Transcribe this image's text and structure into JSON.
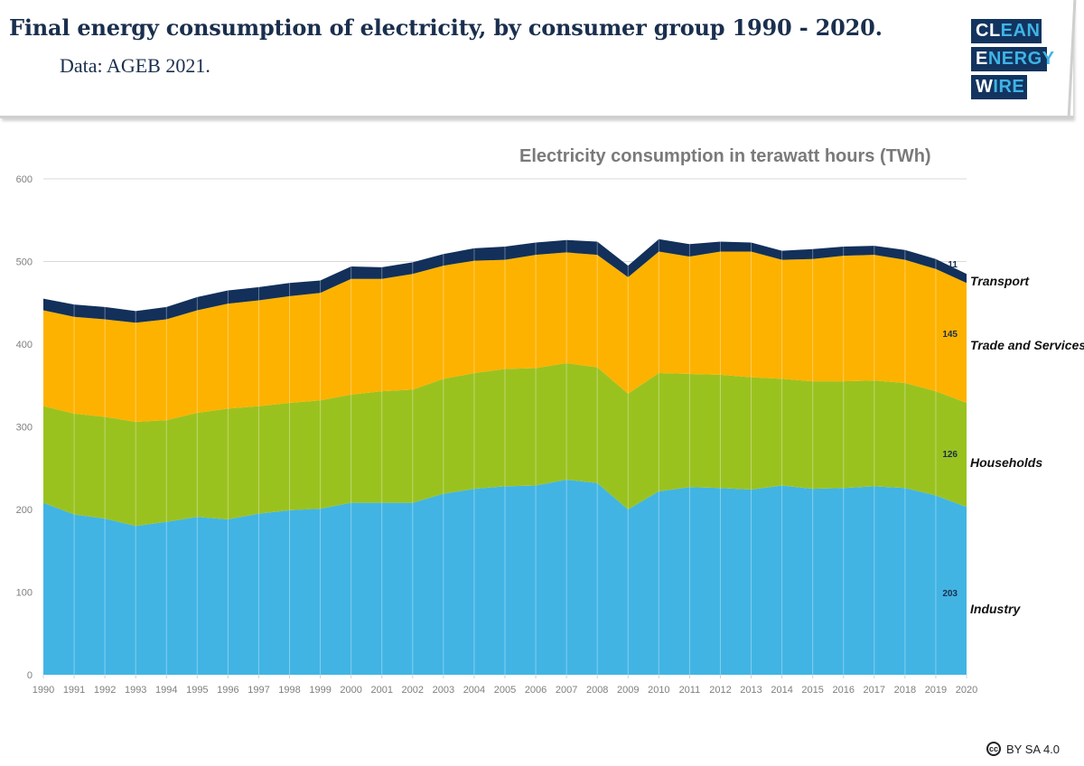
{
  "header": {
    "title": "Final energy consumption of electricity, by consumer group 1990 - 2020.",
    "subtitle": "Data: AGEB 2021."
  },
  "logo": {
    "line1": {
      "white": "CL",
      "blue": "EAN"
    },
    "line2": {
      "white": "E",
      "blue": "NERGY"
    },
    "line3": {
      "white": "W",
      "blue": "IRE"
    }
  },
  "license": {
    "icon": "cc-icon",
    "icon_text": "cc",
    "text": "BY SA 4.0"
  },
  "chart_data": {
    "type": "area",
    "stacked": true,
    "title": "Electricity consumption in terawatt hours (TWh)",
    "xlabel": "",
    "ylabel": "",
    "ylim": [
      0,
      600
    ],
    "yticks": [
      0,
      100,
      200,
      300,
      400,
      500,
      600
    ],
    "grid": true,
    "categories": [
      "1990",
      "1991",
      "1992",
      "1993",
      "1994",
      "1995",
      "1996",
      "1997",
      "1998",
      "1999",
      "2000",
      "2001",
      "2002",
      "2003",
      "2004",
      "2005",
      "2006",
      "2007",
      "2008",
      "2009",
      "2010",
      "2011",
      "2012",
      "2013",
      "2014",
      "2015",
      "2016",
      "2017",
      "2018",
      "2019",
      "2020"
    ],
    "series": [
      {
        "name": "Industry",
        "color": "#41b4e4",
        "values": [
          208,
          194,
          189,
          180,
          185,
          191,
          188,
          195,
          199,
          201,
          208,
          208,
          208,
          219,
          225,
          228,
          229,
          236,
          232,
          200,
          222,
          227,
          226,
          224,
          229,
          225,
          226,
          228,
          226,
          217,
          203
        ],
        "end_label": "203"
      },
      {
        "name": "Households",
        "color": "#9ac21f",
        "values": [
          117,
          122,
          123,
          126,
          123,
          126,
          134,
          130,
          130,
          131,
          131,
          135,
          137,
          139,
          140,
          142,
          142,
          141,
          140,
          140,
          143,
          137,
          137,
          136,
          129,
          130,
          129,
          128,
          127,
          126,
          126
        ],
        "end_label": "126"
      },
      {
        "name": "Trade and Services",
        "color": "#fdb200",
        "values": [
          116,
          117,
          118,
          120,
          122,
          124,
          127,
          128,
          129,
          130,
          140,
          136,
          140,
          137,
          136,
          132,
          137,
          134,
          136,
          141,
          147,
          142,
          149,
          152,
          144,
          148,
          152,
          152,
          149,
          148,
          145
        ],
        "end_label": "145"
      },
      {
        "name": "Transport",
        "color": "#12305a",
        "values": [
          14,
          15,
          15,
          14,
          15,
          16,
          16,
          16,
          16,
          15,
          15,
          14,
          14,
          14,
          15,
          16,
          15,
          15,
          16,
          14,
          15,
          15,
          12,
          11,
          11,
          12,
          11,
          11,
          12,
          12,
          11
        ],
        "end_label": "11"
      }
    ],
    "legend": "right, inline at series end"
  }
}
